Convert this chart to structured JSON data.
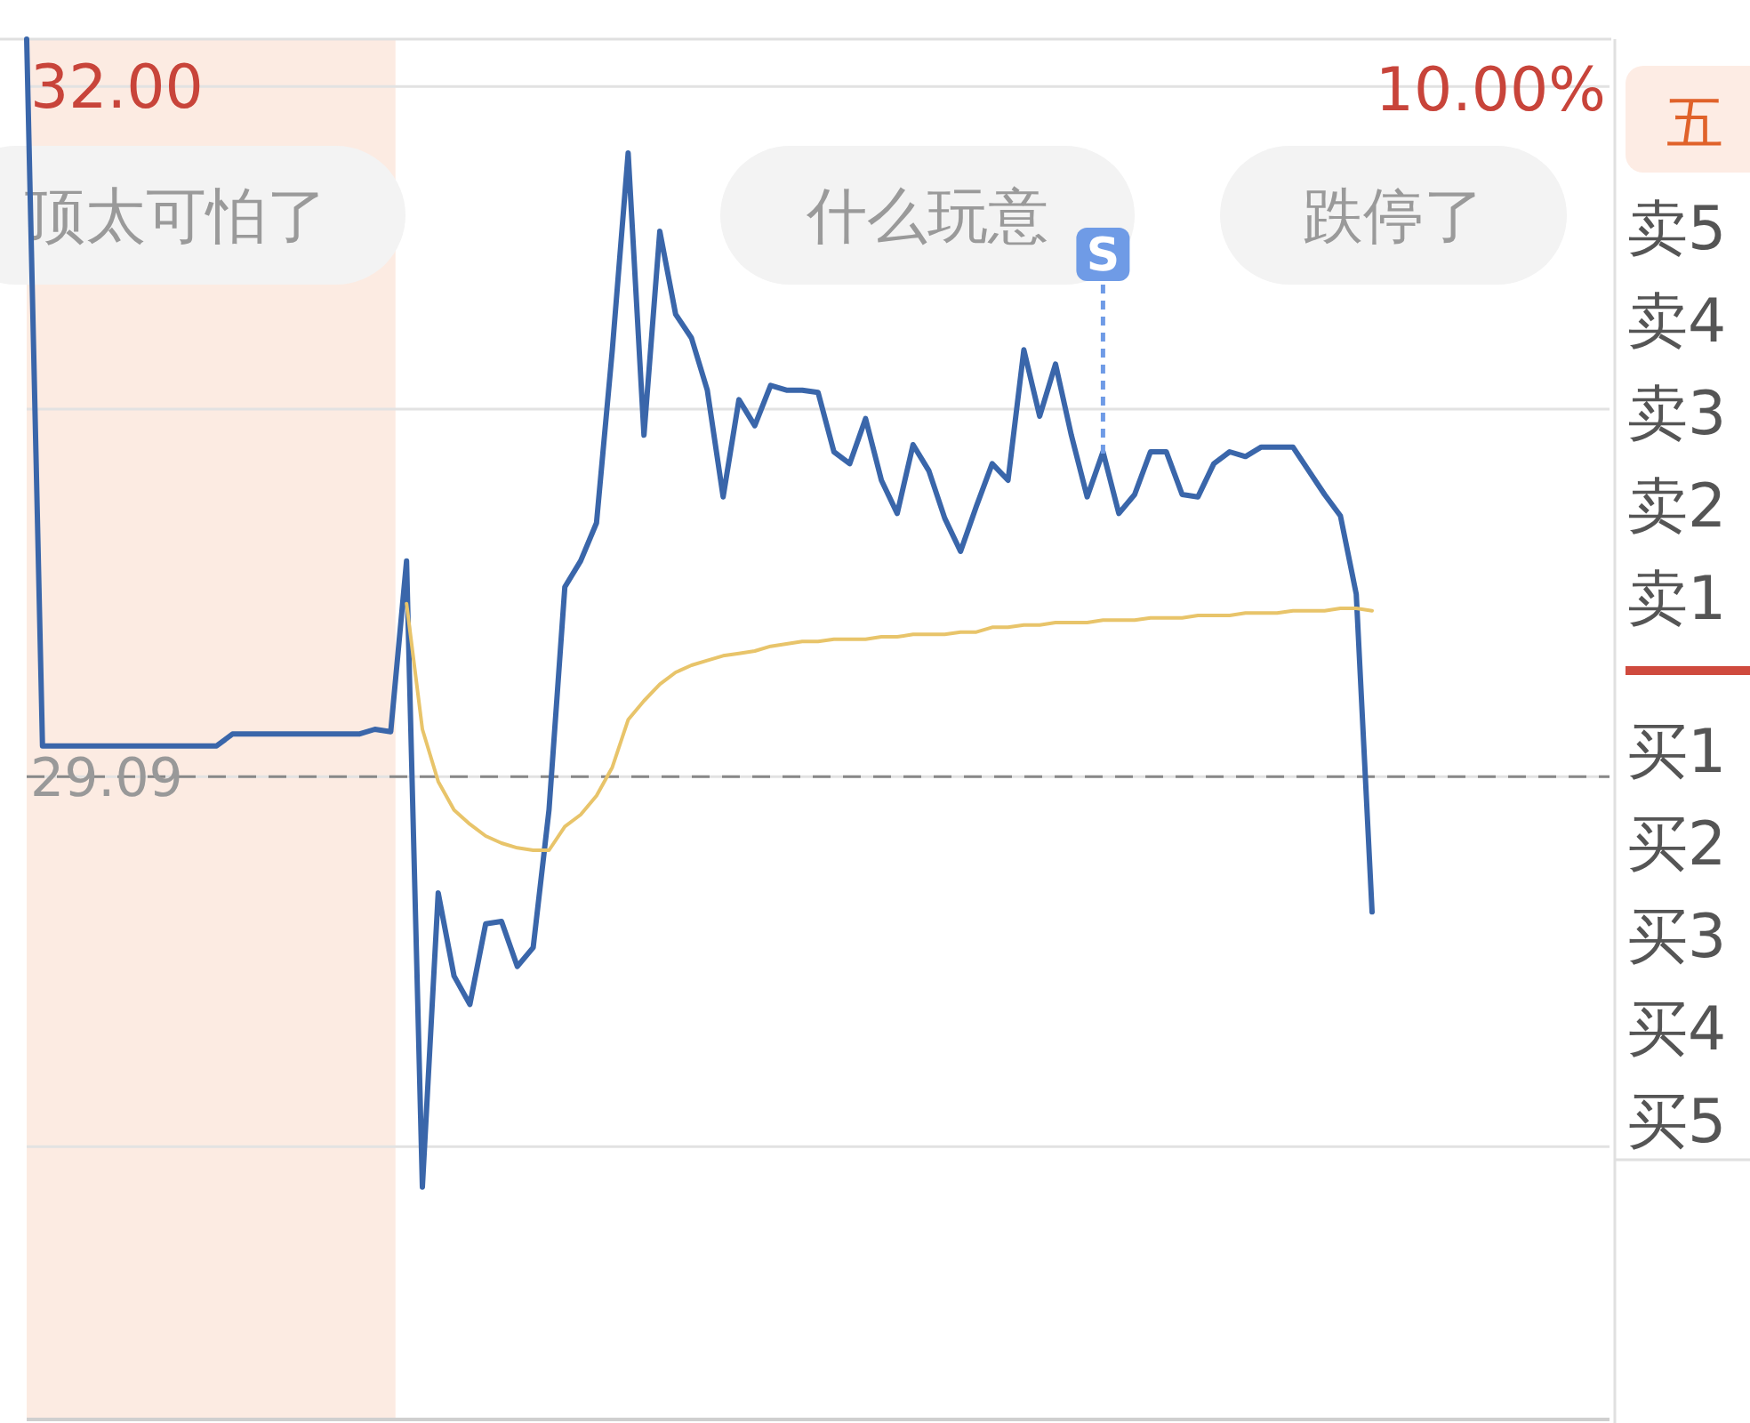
{
  "chart_data": {
    "type": "line",
    "categories": [
      null,
      null,
      null,
      null,
      null,
      null,
      null,
      null,
      null,
      null,
      null,
      null,
      null,
      null,
      null,
      null,
      null,
      null,
      null,
      null,
      null,
      null,
      null,
      null,
      null,
      null,
      null,
      null,
      null,
      null,
      null,
      null,
      null,
      null,
      null,
      null,
      null,
      null,
      null,
      null,
      null,
      null,
      null,
      null,
      null,
      null,
      null,
      null,
      null,
      null,
      null,
      null,
      null,
      null,
      null,
      null,
      null,
      null,
      null,
      null,
      null,
      null,
      null,
      null,
      null,
      null,
      null,
      null,
      null,
      null,
      null,
      null,
      null,
      null,
      null,
      null,
      null,
      null,
      null,
      null,
      null,
      null,
      null,
      null,
      null,
      null,
      null,
      null,
      null,
      null,
      null,
      null,
      null,
      null,
      null,
      null,
      null,
      null,
      null,
      null,
      null
    ],
    "series": [
      {
        "color": "#3a66aa",
        "values": [
          32.2,
          29.22,
          29.22,
          29.22,
          29.22,
          29.22,
          29.22,
          29.22,
          29.22,
          29.22,
          29.22,
          29.22,
          29.22,
          29.27,
          29.27,
          29.27,
          29.27,
          29.27,
          29.27,
          29.27,
          29.27,
          29.27,
          29.29,
          29.28,
          30.0,
          27.36,
          28.6,
          28.25,
          28.13,
          28.47,
          28.48,
          28.29,
          28.37,
          28.95,
          29.89,
          30.0,
          30.16,
          30.89,
          31.72,
          30.53,
          31.39,
          31.04,
          30.94,
          30.72,
          30.27,
          30.68,
          30.57,
          30.74,
          30.72,
          30.72,
          30.71,
          30.46,
          30.41,
          30.6,
          30.34,
          30.2,
          30.49,
          30.38,
          30.18,
          30.04,
          30.23,
          30.41,
          30.34,
          30.89,
          30.61,
          30.83,
          30.53,
          30.27,
          30.46,
          30.2,
          30.28,
          30.46,
          30.46,
          30.28,
          30.27,
          30.41,
          30.46,
          30.44,
          30.48,
          30.48,
          30.48,
          30.38,
          30.28,
          30.19,
          29.86,
          28.52,
          null,
          null,
          null,
          null,
          null,
          null,
          null,
          null,
          null,
          null,
          null,
          null,
          null,
          null,
          null
        ]
      },
      {
        "color": "#e8c46a",
        "values": [
          null,
          null,
          null,
          null,
          null,
          null,
          null,
          null,
          null,
          null,
          null,
          null,
          null,
          null,
          null,
          null,
          null,
          null,
          null,
          null,
          null,
          null,
          null,
          null,
          29.82,
          29.29,
          29.07,
          28.95,
          28.89,
          28.84,
          28.81,
          28.79,
          28.78,
          28.78,
          28.88,
          28.93,
          29.01,
          29.13,
          29.33,
          29.41,
          29.48,
          29.53,
          29.56,
          29.58,
          29.6,
          29.61,
          29.62,
          29.64,
          29.65,
          29.66,
          29.66,
          29.67,
          29.67,
          29.67,
          29.68,
          29.68,
          29.69,
          29.69,
          29.69,
          29.7,
          29.7,
          29.72,
          29.72,
          29.73,
          29.73,
          29.74,
          29.74,
          29.74,
          29.75,
          29.75,
          29.75,
          29.76,
          29.76,
          29.76,
          29.77,
          29.77,
          29.77,
          29.78,
          29.78,
          29.78,
          29.79,
          29.79,
          29.79,
          29.8,
          29.8,
          29.79,
          null,
          null,
          null,
          null,
          null,
          null,
          null,
          null,
          null,
          null,
          null,
          null,
          null,
          null,
          null
        ]
      }
    ],
    "ylim": [
      26.38,
      32.2
    ],
    "yticks": [
      {
        "value": 32.0,
        "label": "32.00"
      },
      {
        "value": 30.64,
        "label": null
      },
      {
        "value": 29.09,
        "label": "29.09"
      },
      {
        "value": 27.53,
        "label": null
      }
    ],
    "grid": "y",
    "ref_lines": [
      {
        "axis": "y",
        "value": 29.09,
        "color": "#888888",
        "line_style": "dashed"
      }
    ],
    "annotations": [
      "S",
      "顶太可怕了",
      "什么玩意",
      "跌停了",
      "10.00%",
      "五",
      "卖5",
      "卖4",
      "卖3",
      "卖2",
      "卖1",
      "买1",
      "买2",
      "买3",
      "买4",
      "买5"
    ]
  }
}
